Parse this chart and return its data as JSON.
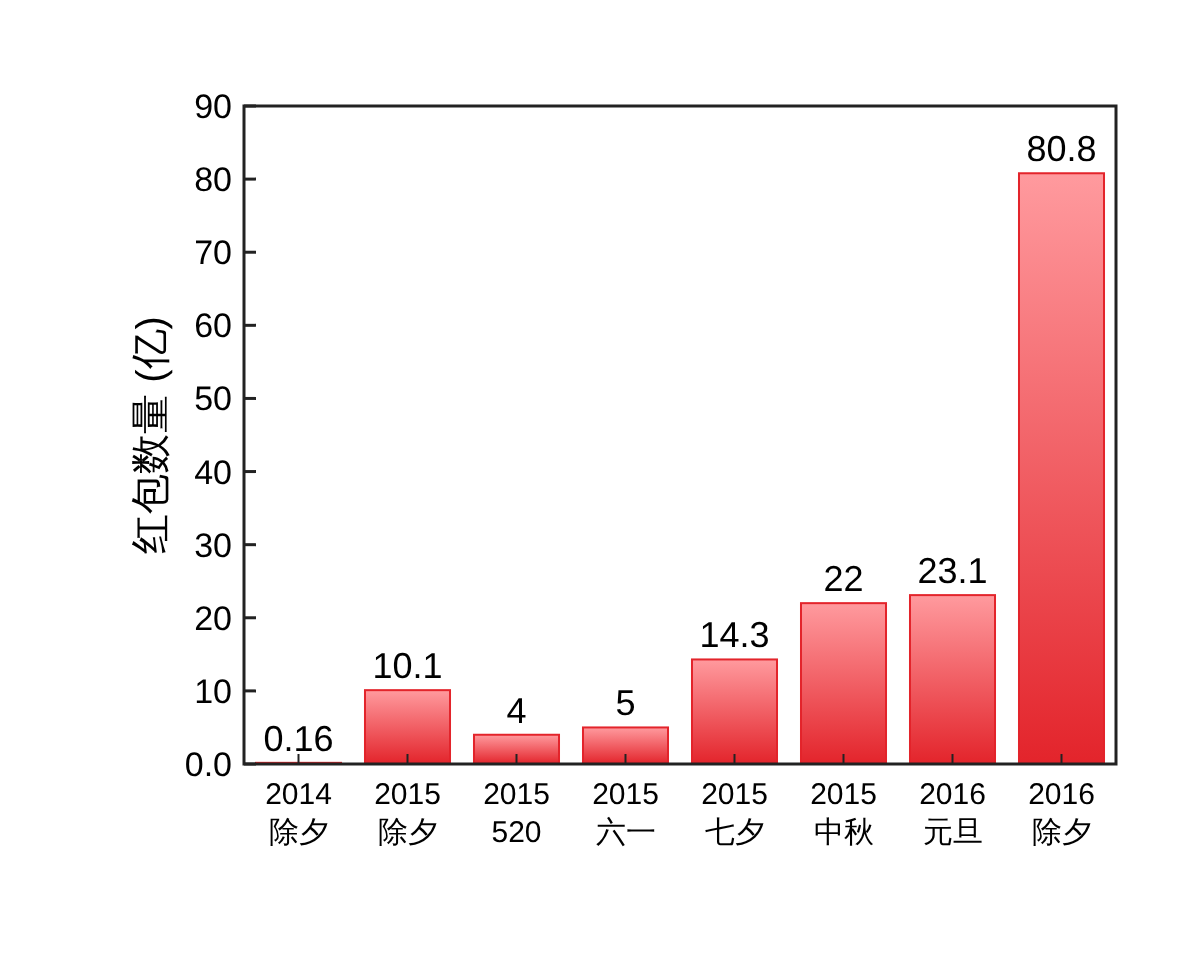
{
  "chart_data": {
    "type": "bar",
    "ylabel": "红包数量 (亿)",
    "categories": [
      "2014 除夕",
      "2015 除夕",
      "2015 520",
      "2015 六一",
      "2015 七夕",
      "2015 中秋",
      "2016 元旦",
      "2016 除夕"
    ],
    "values": [
      0.16,
      10.1,
      4,
      5,
      14.3,
      22,
      23.1,
      80.8
    ],
    "value_labels": [
      "0.16",
      "10.1",
      "4",
      "5",
      "14.3",
      "22",
      "23.1",
      "80.8"
    ],
    "color": "#e3242b",
    "ylim": [
      0,
      90
    ],
    "yticks": [
      {
        "value": 0,
        "label": "0.0"
      },
      10,
      20,
      30,
      40,
      50,
      60,
      70,
      80,
      90
    ],
    "grid": false
  }
}
